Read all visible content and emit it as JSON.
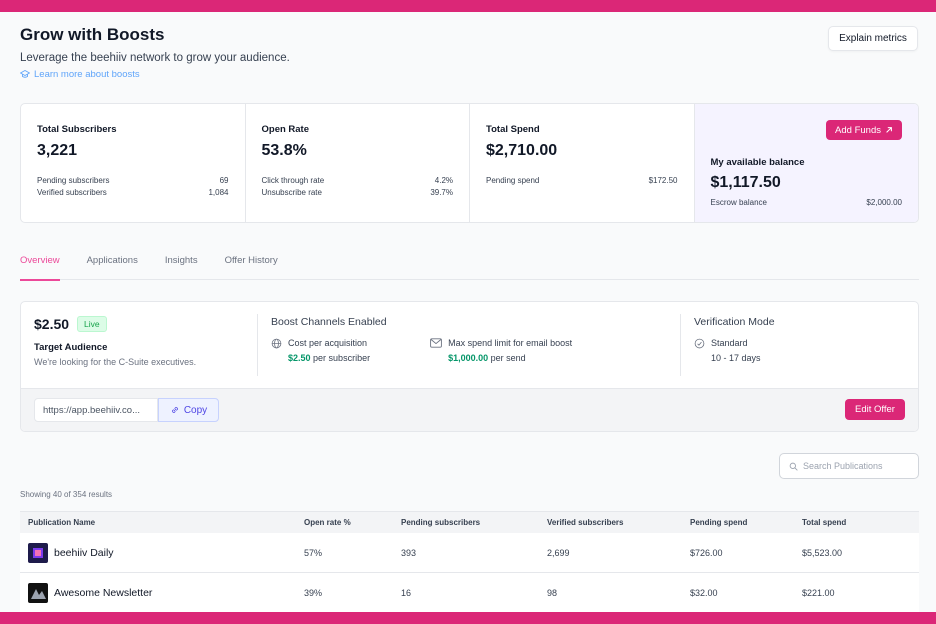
{
  "header": {
    "title": "Grow with Boosts",
    "subtitle": "Leverage the beehiiv network to grow your audience.",
    "learn_more": "Learn more about boosts",
    "explain_button": "Explain metrics"
  },
  "stats": {
    "subscribers": {
      "label": "Total Subscribers",
      "value": "3,221",
      "rows": [
        {
          "label": "Pending subscribers",
          "value": "69"
        },
        {
          "label": "Verified subscribers",
          "value": "1,084"
        }
      ]
    },
    "open_rate": {
      "label": "Open Rate",
      "value": "53.8%",
      "rows": [
        {
          "label": "Click through rate",
          "value": "4.2%"
        },
        {
          "label": "Unsubscribe rate",
          "value": "39.7%"
        }
      ]
    },
    "spend": {
      "label": "Total Spend",
      "value": "$2,710.00",
      "rows": [
        {
          "label": "Pending spend",
          "value": "$172.50"
        }
      ]
    },
    "balance": {
      "button": "Add Funds",
      "label": "My available balance",
      "value": "$1,117.50",
      "rows": [
        {
          "label": "Escrow balance",
          "value": "$2,000.00"
        }
      ]
    }
  },
  "tabs": [
    "Overview",
    "Applications",
    "Insights",
    "Offer History"
  ],
  "offer": {
    "price": "$2.50",
    "status": "Live",
    "audience_label": "Target Audience",
    "audience_text": "We're looking for the C-Suite executives.",
    "channels_title": "Boost Channels Enabled",
    "cpa_label": "Cost per acquisition",
    "cpa_value": "$2.50",
    "cpa_suffix": "per subscriber",
    "email_label": "Max spend limit for email boost",
    "email_value": "$1,000.00",
    "email_suffix": "per send",
    "verification_title": "Verification Mode",
    "verification_mode": "Standard",
    "verification_days": "10 - 17 days",
    "url": "https://app.beehiiv.co...",
    "copy_button": "Copy",
    "edit_button": "Edit Offer"
  },
  "search": {
    "placeholder": "Search Publications"
  },
  "results_text": "Showing 40 of 354 results",
  "table": {
    "columns": [
      "Publication Name",
      "Open rate %",
      "Pending subscribers",
      "Verified subscribers",
      "Pending spend",
      "Total spend"
    ],
    "rows": [
      {
        "name": "beehiiv Daily",
        "open_rate": "57%",
        "pending": "393",
        "verified": "2,699",
        "pending_spend": "$726.00",
        "total_spend": "$5,523.00"
      },
      {
        "name": "Awesome Newsletter",
        "open_rate": "39%",
        "pending": "16",
        "verified": "98",
        "pending_spend": "$32.00",
        "total_spend": "$221.00"
      }
    ]
  },
  "colors": {
    "accent": "#db2777",
    "tab_active": "#ec4899",
    "green": "#059669",
    "balance_bg": "#f5f3ff"
  }
}
